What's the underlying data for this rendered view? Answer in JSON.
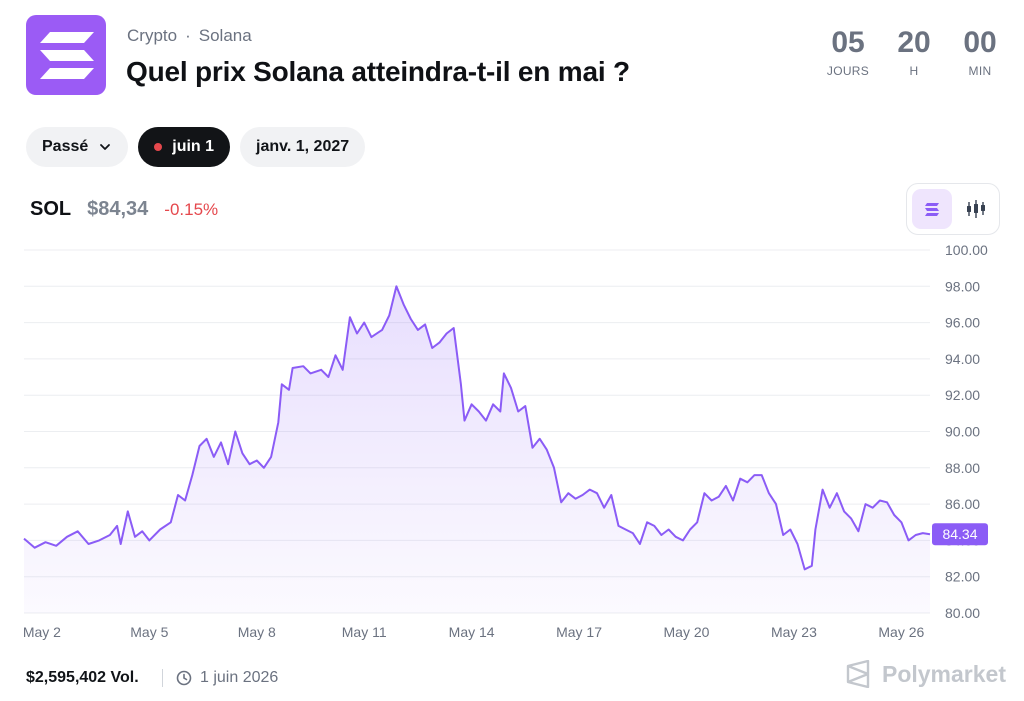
{
  "header": {
    "category": "Crypto",
    "separator": "·",
    "subcategory": "Solana",
    "title": "Quel prix Solana atteindra-t-il en mai ?"
  },
  "countdown": [
    {
      "value": "05",
      "label": "JOURS"
    },
    {
      "value": "20",
      "label": "H"
    },
    {
      "value": "00",
      "label": "MIN"
    }
  ],
  "tabs": [
    {
      "label": "Passé",
      "icon": "chevron-down-icon"
    },
    {
      "label": "juin 1",
      "active": true,
      "icon": "live-dot"
    },
    {
      "label": "janv. 1, 2027"
    }
  ],
  "ticker": {
    "symbol": "SOL",
    "price": "$84,34",
    "change": "-0.15%"
  },
  "view_toggle": [
    "line-chart-icon",
    "candlestick-icon"
  ],
  "chart_data": {
    "type": "line",
    "series_color": "#8b5cf6",
    "negative_color": "#e5484d",
    "x_ticks": [
      "May 2",
      "May 5",
      "May 8",
      "May 11",
      "May 14",
      "May 17",
      "May 20",
      "May 23",
      "May 26"
    ],
    "x_range": [
      1.5,
      26.8
    ],
    "ylim": [
      80,
      100
    ],
    "y_ticks": [
      "100.00",
      "98.00",
      "96.00",
      "94.00",
      "92.00",
      "90.00",
      "88.00",
      "86.00",
      "84.00",
      "82.00",
      "80.00"
    ],
    "last_value_label": "84.34",
    "grid": true,
    "points": [
      [
        1.5,
        84.1
      ],
      [
        1.8,
        83.6
      ],
      [
        2.1,
        83.9
      ],
      [
        2.4,
        83.7
      ],
      [
        2.7,
        84.2
      ],
      [
        3.0,
        84.5
      ],
      [
        3.3,
        83.8
      ],
      [
        3.6,
        84.0
      ],
      [
        3.9,
        84.3
      ],
      [
        4.1,
        84.8
      ],
      [
        4.2,
        83.8
      ],
      [
        4.4,
        85.6
      ],
      [
        4.6,
        84.2
      ],
      [
        4.8,
        84.5
      ],
      [
        5.0,
        84.0
      ],
      [
        5.3,
        84.6
      ],
      [
        5.6,
        85.0
      ],
      [
        5.8,
        86.5
      ],
      [
        6.0,
        86.2
      ],
      [
        6.2,
        87.6
      ],
      [
        6.4,
        89.2
      ],
      [
        6.6,
        89.6
      ],
      [
        6.8,
        88.6
      ],
      [
        7.0,
        89.4
      ],
      [
        7.2,
        88.2
      ],
      [
        7.4,
        90.0
      ],
      [
        7.6,
        88.8
      ],
      [
        7.8,
        88.2
      ],
      [
        8.0,
        88.4
      ],
      [
        8.2,
        88.0
      ],
      [
        8.4,
        88.6
      ],
      [
        8.6,
        90.5
      ],
      [
        8.7,
        92.6
      ],
      [
        8.9,
        92.3
      ],
      [
        9.0,
        93.5
      ],
      [
        9.3,
        93.6
      ],
      [
        9.5,
        93.2
      ],
      [
        9.8,
        93.4
      ],
      [
        10.0,
        93.0
      ],
      [
        10.2,
        94.2
      ],
      [
        10.4,
        93.4
      ],
      [
        10.6,
        96.3
      ],
      [
        10.8,
        95.4
      ],
      [
        11.0,
        96.0
      ],
      [
        11.2,
        95.2
      ],
      [
        11.5,
        95.6
      ],
      [
        11.7,
        96.4
      ],
      [
        11.9,
        98.0
      ],
      [
        12.1,
        97.0
      ],
      [
        12.3,
        96.2
      ],
      [
        12.5,
        95.6
      ],
      [
        12.7,
        95.9
      ],
      [
        12.9,
        94.6
      ],
      [
        13.1,
        94.9
      ],
      [
        13.3,
        95.4
      ],
      [
        13.5,
        95.7
      ],
      [
        13.7,
        92.6
      ],
      [
        13.8,
        90.6
      ],
      [
        14.0,
        91.5
      ],
      [
        14.2,
        91.1
      ],
      [
        14.4,
        90.6
      ],
      [
        14.6,
        91.5
      ],
      [
        14.8,
        91.1
      ],
      [
        14.9,
        93.2
      ],
      [
        15.1,
        92.4
      ],
      [
        15.3,
        91.1
      ],
      [
        15.5,
        91.4
      ],
      [
        15.7,
        89.1
      ],
      [
        15.9,
        89.6
      ],
      [
        16.1,
        89.0
      ],
      [
        16.3,
        88.0
      ],
      [
        16.5,
        86.1
      ],
      [
        16.7,
        86.6
      ],
      [
        16.9,
        86.3
      ],
      [
        17.1,
        86.5
      ],
      [
        17.3,
        86.8
      ],
      [
        17.5,
        86.6
      ],
      [
        17.7,
        85.8
      ],
      [
        17.9,
        86.5
      ],
      [
        18.1,
        84.8
      ],
      [
        18.3,
        84.6
      ],
      [
        18.5,
        84.4
      ],
      [
        18.7,
        83.8
      ],
      [
        18.9,
        85.0
      ],
      [
        19.1,
        84.8
      ],
      [
        19.3,
        84.3
      ],
      [
        19.5,
        84.6
      ],
      [
        19.7,
        84.2
      ],
      [
        19.9,
        84.0
      ],
      [
        20.1,
        84.6
      ],
      [
        20.3,
        85.0
      ],
      [
        20.5,
        86.6
      ],
      [
        20.7,
        86.2
      ],
      [
        20.9,
        86.4
      ],
      [
        21.1,
        87.0
      ],
      [
        21.3,
        86.2
      ],
      [
        21.5,
        87.4
      ],
      [
        21.7,
        87.2
      ],
      [
        21.9,
        87.6
      ],
      [
        22.1,
        87.6
      ],
      [
        22.3,
        86.6
      ],
      [
        22.5,
        86.0
      ],
      [
        22.7,
        84.3
      ],
      [
        22.9,
        84.6
      ],
      [
        23.1,
        83.8
      ],
      [
        23.3,
        82.4
      ],
      [
        23.5,
        82.6
      ],
      [
        23.6,
        84.6
      ],
      [
        23.8,
        86.8
      ],
      [
        24.0,
        85.8
      ],
      [
        24.2,
        86.6
      ],
      [
        24.4,
        85.6
      ],
      [
        24.6,
        85.2
      ],
      [
        24.8,
        84.5
      ],
      [
        25.0,
        86.0
      ],
      [
        25.2,
        85.8
      ],
      [
        25.4,
        86.2
      ],
      [
        25.6,
        86.1
      ],
      [
        25.8,
        85.4
      ],
      [
        26.0,
        85.0
      ],
      [
        26.2,
        84.0
      ],
      [
        26.4,
        84.3
      ],
      [
        26.6,
        84.4
      ],
      [
        26.8,
        84.34
      ]
    ]
  },
  "footer": {
    "volume": "$2,595,402 Vol.",
    "date": "1 juin 2026",
    "date_icon": "clock-icon",
    "brand": "Polymarket"
  }
}
